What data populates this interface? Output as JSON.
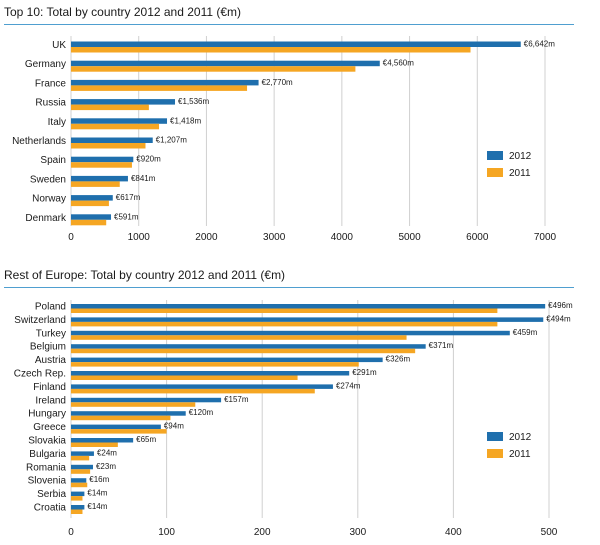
{
  "colors": {
    "series_2012": "#1f6fad",
    "series_2011": "#f5a623",
    "grid": "#d0d0d0",
    "rule": "#4f9fd0"
  },
  "chart_data": [
    {
      "type": "bar",
      "orientation": "horizontal",
      "title": "Top 10: Total by country 2012 and 2011 (€m)",
      "categories": [
        "UK",
        "Germany",
        "France",
        "Russia",
        "Italy",
        "Netherlands",
        "Spain",
        "Sweden",
        "Norway",
        "Denmark"
      ],
      "series": [
        {
          "name": "2012",
          "values": [
            6642,
            4560,
            2770,
            1536,
            1418,
            1207,
            920,
            841,
            617,
            591
          ]
        },
        {
          "name": "2011",
          "values": [
            5900,
            4200,
            2600,
            1150,
            1300,
            1100,
            900,
            720,
            560,
            520
          ]
        }
      ],
      "data_labels": [
        "€6,642m",
        "€4,560m",
        "€2,770m",
        "€1,536m",
        "€1,418m",
        "€1,207m",
        "€920m",
        "€841m",
        "€617m",
        "€591m"
      ],
      "xticks": [
        "0",
        "1000",
        "2000",
        "3000",
        "4000",
        "5000",
        "6000",
        "7000"
      ],
      "xlim": [
        0,
        7000
      ],
      "grid": true,
      "legend": "right"
    },
    {
      "type": "bar",
      "orientation": "horizontal",
      "title": "Rest of Europe: Total by country 2012 and 2011 (€m)",
      "categories": [
        "Poland",
        "Switzerland",
        "Turkey",
        "Belgium",
        "Austria",
        "Czech Rep.",
        "Finland",
        "Ireland",
        "Hungary",
        "Greece",
        "Slovakia",
        "Bulgaria",
        "Romania",
        "Slovenia",
        "Serbia",
        "Croatia"
      ],
      "series": [
        {
          "name": "2012",
          "values": [
            496,
            494,
            459,
            371,
            326,
            291,
            274,
            157,
            120,
            94,
            65,
            24,
            23,
            16,
            14,
            14
          ]
        },
        {
          "name": "2011",
          "values": [
            446,
            446,
            351,
            360,
            301,
            237,
            255,
            130,
            104,
            100,
            49,
            19,
            20,
            17,
            12,
            12
          ]
        }
      ],
      "data_labels": [
        "€496m",
        "€494m",
        "€459m",
        "€371m",
        "€326m",
        "€291m",
        "€274m",
        "€157m",
        "€120m",
        "€94m",
        "€65m",
        "€24m",
        "€23m",
        "€16m",
        "€14m",
        "€14m"
      ],
      "xticks": [
        "0",
        "100",
        "200",
        "300",
        "400",
        "500"
      ],
      "xlim": [
        0,
        500
      ],
      "grid": true,
      "legend": "right"
    }
  ]
}
